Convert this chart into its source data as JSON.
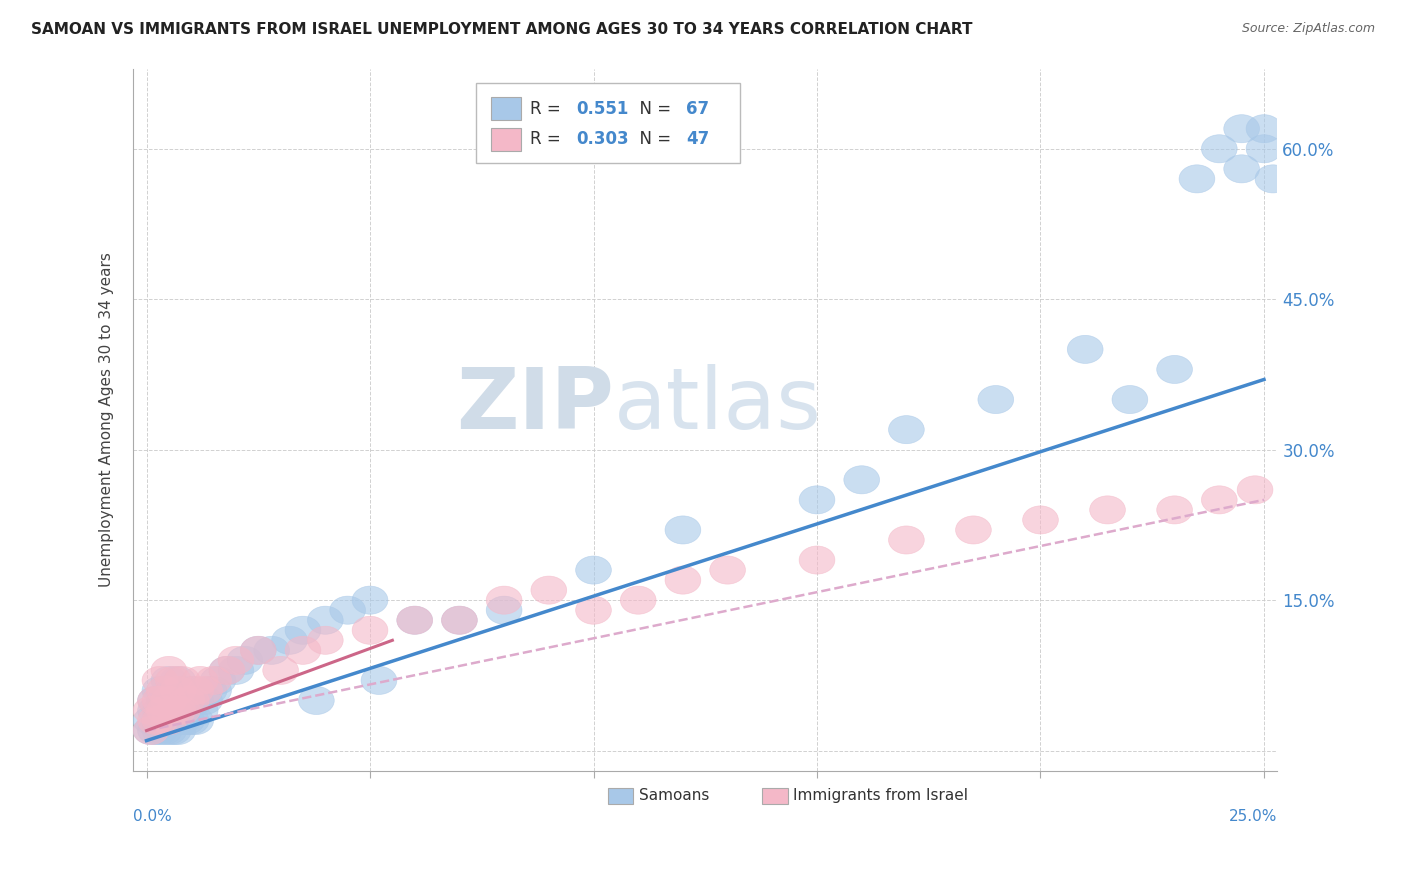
{
  "title": "SAMOAN VS IMMIGRANTS FROM ISRAEL UNEMPLOYMENT AMONG AGES 30 TO 34 YEARS CORRELATION CHART",
  "source": "Source: ZipAtlas.com",
  "ylabel": "Unemployment Among Ages 30 to 34 years",
  "samoans_R": 0.551,
  "samoans_N": 67,
  "israel_R": 0.303,
  "israel_N": 47,
  "blue_color": "#a8c8e8",
  "pink_color": "#f4b8c8",
  "blue_line_color": "#4488cc",
  "pink_line_color": "#cc6688",
  "pink_dash_color": "#ddaacc",
  "legend_text_color": "#4488cc",
  "watermark_color": "#d0dce8",
  "background_color": "#ffffff",
  "grid_color": "#cccccc",
  "xmin": 0.0,
  "xmax": 0.25,
  "ymin": 0.0,
  "ymax": 0.65,
  "samoans_x": [
    0.001,
    0.001,
    0.002,
    0.002,
    0.002,
    0.003,
    0.003,
    0.003,
    0.003,
    0.004,
    0.004,
    0.004,
    0.005,
    0.005,
    0.005,
    0.005,
    0.006,
    0.006,
    0.006,
    0.007,
    0.007,
    0.007,
    0.007,
    0.008,
    0.008,
    0.009,
    0.009,
    0.01,
    0.01,
    0.011,
    0.011,
    0.012,
    0.013,
    0.014,
    0.015,
    0.016,
    0.018,
    0.02,
    0.022,
    0.025,
    0.028,
    0.032,
    0.035,
    0.04,
    0.045,
    0.05,
    0.06,
    0.07,
    0.08,
    0.1,
    0.12,
    0.15,
    0.16,
    0.17,
    0.19,
    0.21,
    0.22,
    0.23,
    0.235,
    0.24,
    0.245,
    0.245,
    0.25,
    0.25,
    0.252,
    0.052,
    0.038
  ],
  "samoans_y": [
    0.02,
    0.03,
    0.02,
    0.04,
    0.05,
    0.02,
    0.03,
    0.04,
    0.06,
    0.02,
    0.03,
    0.05,
    0.02,
    0.03,
    0.04,
    0.07,
    0.02,
    0.04,
    0.06,
    0.02,
    0.03,
    0.05,
    0.07,
    0.03,
    0.06,
    0.03,
    0.05,
    0.03,
    0.06,
    0.03,
    0.05,
    0.04,
    0.05,
    0.06,
    0.06,
    0.07,
    0.08,
    0.08,
    0.09,
    0.1,
    0.1,
    0.11,
    0.12,
    0.13,
    0.14,
    0.15,
    0.13,
    0.13,
    0.14,
    0.18,
    0.22,
    0.25,
    0.27,
    0.32,
    0.35,
    0.4,
    0.35,
    0.38,
    0.57,
    0.6,
    0.62,
    0.58,
    0.6,
    0.62,
    0.57,
    0.07,
    0.05
  ],
  "israel_x": [
    0.001,
    0.001,
    0.002,
    0.002,
    0.003,
    0.003,
    0.003,
    0.004,
    0.004,
    0.005,
    0.005,
    0.005,
    0.006,
    0.006,
    0.007,
    0.007,
    0.008,
    0.008,
    0.009,
    0.01,
    0.011,
    0.012,
    0.013,
    0.015,
    0.018,
    0.02,
    0.025,
    0.03,
    0.035,
    0.04,
    0.05,
    0.06,
    0.07,
    0.08,
    0.09,
    0.1,
    0.11,
    0.12,
    0.13,
    0.15,
    0.17,
    0.185,
    0.2,
    0.215,
    0.23,
    0.24,
    0.248
  ],
  "israel_y": [
    0.02,
    0.04,
    0.03,
    0.05,
    0.03,
    0.05,
    0.07,
    0.04,
    0.06,
    0.03,
    0.05,
    0.08,
    0.04,
    0.07,
    0.04,
    0.06,
    0.04,
    0.07,
    0.05,
    0.05,
    0.06,
    0.07,
    0.06,
    0.07,
    0.08,
    0.09,
    0.1,
    0.08,
    0.1,
    0.11,
    0.12,
    0.13,
    0.13,
    0.15,
    0.16,
    0.14,
    0.15,
    0.17,
    0.18,
    0.19,
    0.21,
    0.22,
    0.23,
    0.24,
    0.24,
    0.25,
    0.26
  ]
}
